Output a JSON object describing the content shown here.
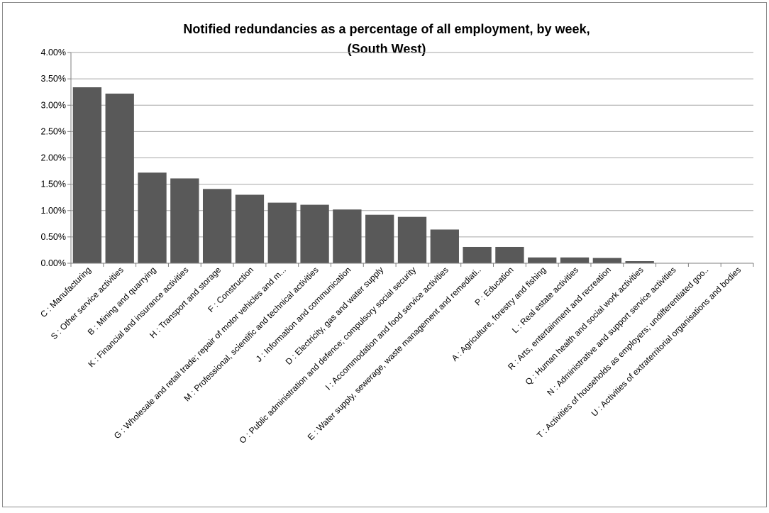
{
  "chart_data": {
    "type": "bar",
    "title": "Notified redundancies as a percentage of all employment, by week,",
    "subtitle": "(South West)",
    "ylim": [
      0,
      0.04
    ],
    "yticks": [
      "0.00%",
      "0.50%",
      "1.00%",
      "1.50%",
      "2.00%",
      "2.50%",
      "3.00%",
      "3.50%",
      "4.00%"
    ],
    "grid": true,
    "colors": {
      "bar": "#595959",
      "grid": "#a6a6a6",
      "axis": "#7f7f7f",
      "frame": "#8c8c8c",
      "title": "#000000"
    },
    "categories": [
      "C : Manufacturing",
      "S : Other service activities",
      "B : Mining and quarrying",
      "K : Financial and insurance activities",
      "H : Transport and storage",
      "F : Construction",
      "G : Wholesale and retail trade; repair of motor vehicles and m...",
      "M : Professional, scientific and technical activities",
      "J : Information and communication",
      "D : Electricity, gas and water supply",
      "O : Public administration and defence; compulsory social security",
      "I : Accommodation and food service activities",
      "E : Water supply, sewerage, waste management and remediati..",
      "P : Education",
      "A : Agriculture, forestry and fishing",
      "L : Real estate activities",
      "R : Arts, entertainment and recreation",
      "Q : Human health and social work activities",
      "N : Administrative and support service activities",
      "T : Activities of households as employers; undifferentiated goo..",
      "U : Activities of extraterritorial organisations and bodies"
    ],
    "values": [
      0.0334,
      0.0322,
      0.0172,
      0.0161,
      0.0141,
      0.013,
      0.0115,
      0.0111,
      0.0102,
      0.0092,
      0.0088,
      0.0064,
      0.0031,
      0.0031,
      0.0011,
      0.0011,
      0.001,
      0.0004,
      0.0,
      0.0,
      0.0
    ]
  }
}
